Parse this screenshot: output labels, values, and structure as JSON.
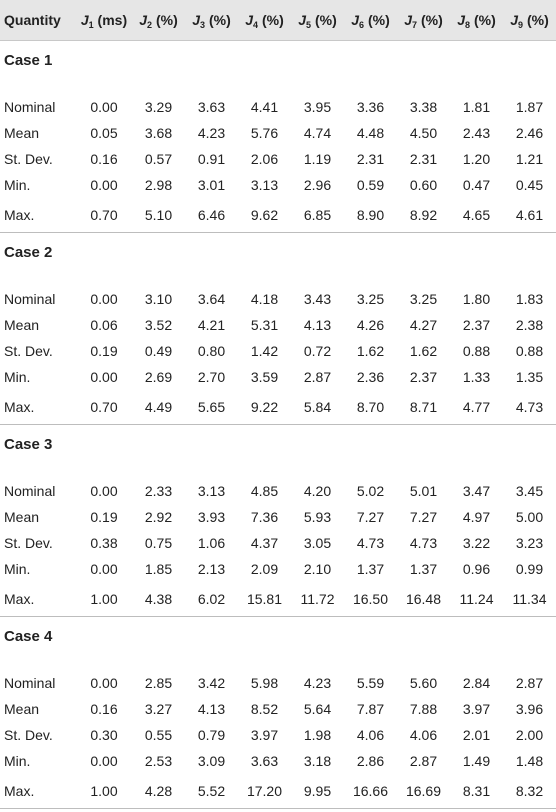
{
  "header": {
    "quantity": "Quantity",
    "columns": [
      {
        "sym": "J",
        "sub": "1",
        "unit": " (ms)"
      },
      {
        "sym": "J",
        "sub": "2",
        "unit": " (%)"
      },
      {
        "sym": "J",
        "sub": "3",
        "unit": " (%)"
      },
      {
        "sym": "J",
        "sub": "4",
        "unit": " (%)"
      },
      {
        "sym": "J",
        "sub": "5",
        "unit": " (%)"
      },
      {
        "sym": "J",
        "sub": "6",
        "unit": " (%)"
      },
      {
        "sym": "J",
        "sub": "7",
        "unit": " (%)"
      },
      {
        "sym": "J",
        "sub": "8",
        "unit": " (%)"
      },
      {
        "sym": "J",
        "sub": "9",
        "unit": " (%)"
      }
    ]
  },
  "cases": [
    {
      "title": "Case 1",
      "rows": [
        {
          "label": "Nominal",
          "values": [
            "0.00",
            "3.29",
            "3.63",
            "4.41",
            "3.95",
            "3.36",
            "3.38",
            "1.81",
            "1.87"
          ]
        },
        {
          "label": "Mean",
          "values": [
            "0.05",
            "3.68",
            "4.23",
            "5.76",
            "4.74",
            "4.48",
            "4.50",
            "2.43",
            "2.46"
          ]
        },
        {
          "label": "St. Dev.",
          "values": [
            "0.16",
            "0.57",
            "0.91",
            "2.06",
            "1.19",
            "2.31",
            "2.31",
            "1.20",
            "1.21"
          ]
        },
        {
          "label": "Min.",
          "values": [
            "0.00",
            "2.98",
            "3.01",
            "3.13",
            "2.96",
            "0.59",
            "0.60",
            "0.47",
            "0.45"
          ]
        },
        {
          "label": "Max.",
          "values": [
            "0.70",
            "5.10",
            "6.46",
            "9.62",
            "6.85",
            "8.90",
            "8.92",
            "4.65",
            "4.61"
          ]
        }
      ]
    },
    {
      "title": "Case 2",
      "rows": [
        {
          "label": "Nominal",
          "values": [
            "0.00",
            "3.10",
            "3.64",
            "4.18",
            "3.43",
            "3.25",
            "3.25",
            "1.80",
            "1.83"
          ]
        },
        {
          "label": "Mean",
          "values": [
            "0.06",
            "3.52",
            "4.21",
            "5.31",
            "4.13",
            "4.26",
            "4.27",
            "2.37",
            "2.38"
          ]
        },
        {
          "label": "St. Dev.",
          "values": [
            "0.19",
            "0.49",
            "0.80",
            "1.42",
            "0.72",
            "1.62",
            "1.62",
            "0.88",
            "0.88"
          ]
        },
        {
          "label": "Min.",
          "values": [
            "0.00",
            "2.69",
            "2.70",
            "3.59",
            "2.87",
            "2.36",
            "2.37",
            "1.33",
            "1.35"
          ]
        },
        {
          "label": "Max.",
          "values": [
            "0.70",
            "4.49",
            "5.65",
            "9.22",
            "5.84",
            "8.70",
            "8.71",
            "4.77",
            "4.73"
          ]
        }
      ]
    },
    {
      "title": "Case 3",
      "rows": [
        {
          "label": "Nominal",
          "values": [
            "0.00",
            "2.33",
            "3.13",
            "4.85",
            "4.20",
            "5.02",
            "5.01",
            "3.47",
            "3.45"
          ]
        },
        {
          "label": "Mean",
          "values": [
            "0.19",
            "2.92",
            "3.93",
            "7.36",
            "5.93",
            "7.27",
            "7.27",
            "4.97",
            "5.00"
          ]
        },
        {
          "label": "St. Dev.",
          "values": [
            "0.38",
            "0.75",
            "1.06",
            "4.37",
            "3.05",
            "4.73",
            "4.73",
            "3.22",
            "3.23"
          ]
        },
        {
          "label": "Min.",
          "values": [
            "0.00",
            "1.85",
            "2.13",
            "2.09",
            "2.10",
            "1.37",
            "1.37",
            "0.96",
            "0.99"
          ]
        },
        {
          "label": "Max.",
          "values": [
            "1.00",
            "4.38",
            "6.02",
            "15.81",
            "11.72",
            "16.50",
            "16.48",
            "11.24",
            "11.34"
          ]
        }
      ]
    },
    {
      "title": "Case 4",
      "rows": [
        {
          "label": "Nominal",
          "values": [
            "0.00",
            "2.85",
            "3.42",
            "5.98",
            "4.23",
            "5.59",
            "5.60",
            "2.84",
            "2.87"
          ]
        },
        {
          "label": "Mean",
          "values": [
            "0.16",
            "3.27",
            "4.13",
            "8.52",
            "5.64",
            "7.87",
            "7.88",
            "3.97",
            "3.96"
          ]
        },
        {
          "label": "St. Dev.",
          "values": [
            "0.30",
            "0.55",
            "0.79",
            "3.97",
            "1.98",
            "4.06",
            "4.06",
            "2.01",
            "2.00"
          ]
        },
        {
          "label": "Min.",
          "values": [
            "0.00",
            "2.53",
            "3.09",
            "3.63",
            "3.18",
            "2.86",
            "2.87",
            "1.49",
            "1.48"
          ]
        },
        {
          "label": "Max.",
          "values": [
            "1.00",
            "4.28",
            "5.52",
            "17.20",
            "9.95",
            "16.66",
            "16.69",
            "8.31",
            "8.32"
          ]
        }
      ]
    }
  ]
}
